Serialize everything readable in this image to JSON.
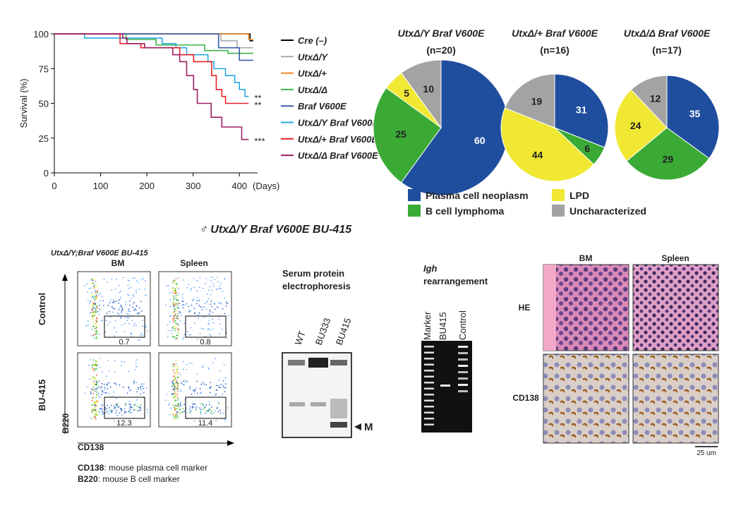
{
  "chart_data": [
    {
      "type": "line",
      "ylabel": "Survival (%)",
      "xlabel": "(Days)",
      "xlim": [
        0,
        450
      ],
      "ylim": [
        0,
        100
      ],
      "xticks": [
        0,
        100,
        200,
        300,
        400
      ],
      "yticks": [
        0,
        25,
        50,
        75,
        100
      ],
      "series": [
        {
          "name": "Cre (–)",
          "color": "#000000",
          "x": [
            0,
            423,
            423,
            430
          ],
          "values": [
            100,
            100,
            95,
            95
          ]
        },
        {
          "name": "UtxΔ/Y",
          "color": "#aaaaaa",
          "x": [
            0,
            360,
            360,
            395,
            395,
            430
          ],
          "values": [
            100,
            100,
            95,
            95,
            90,
            90
          ]
        },
        {
          "name": "UtxΔ/+",
          "color": "#f08a24",
          "x": [
            0,
            420,
            420,
            430
          ],
          "values": [
            100,
            100,
            96,
            96
          ]
        },
        {
          "name": "UtxΔ/Δ",
          "color": "#3cb44b",
          "x": [
            0,
            155,
            155,
            220,
            220,
            325,
            325,
            375,
            375,
            430
          ],
          "values": [
            100,
            100,
            96,
            96,
            92,
            92,
            88,
            88,
            86,
            86
          ]
        },
        {
          "name": "Braf V600E",
          "color": "#3a5dae",
          "x": [
            0,
            355,
            355,
            400,
            400,
            430
          ],
          "values": [
            100,
            100,
            90,
            90,
            81,
            81
          ]
        },
        {
          "name": "UtxΔ/Y Braf V600E",
          "color": "#27aae1",
          "significance": "**",
          "x": [
            0,
            65,
            65,
            233,
            233,
            263,
            263,
            286,
            286,
            332,
            332,
            345,
            345,
            370,
            370,
            390,
            390,
            400,
            400,
            412,
            412,
            420
          ],
          "values": [
            100,
            100,
            97,
            97,
            93,
            93,
            90,
            90,
            85,
            85,
            80,
            80,
            75,
            75,
            70,
            70,
            65,
            65,
            60,
            60,
            55,
            55
          ]
        },
        {
          "name": "UtxΔ/+ Braf V600E",
          "color": "#e8202a",
          "significance": "**",
          "x": [
            0,
            142,
            142,
            187,
            187,
            271,
            271,
            301,
            301,
            340,
            340,
            350,
            350,
            362,
            362,
            370,
            370,
            420
          ],
          "values": [
            100,
            100,
            93,
            93,
            90,
            90,
            85,
            85,
            80,
            80,
            70,
            70,
            60,
            60,
            55,
            55,
            50,
            50
          ]
        },
        {
          "name": "UtxΔ/Δ Braf V600E",
          "color": "#9e1f63",
          "significance": "***",
          "x": [
            0,
            148,
            148,
            157,
            157,
            195,
            195,
            256,
            256,
            271,
            271,
            286,
            286,
            301,
            301,
            309,
            309,
            339,
            339,
            362,
            362,
            405,
            405,
            420
          ],
          "values": [
            100,
            100,
            97,
            97,
            93,
            93,
            90,
            90,
            85,
            85,
            80,
            80,
            70,
            70,
            60,
            60,
            50,
            50,
            40,
            40,
            33,
            33,
            24,
            24
          ]
        }
      ]
    },
    {
      "type": "pie",
      "title": "UtxΔ/Y Braf V600E",
      "subtitle": "(n=20)",
      "categories": [
        "Plasma cell neoplasm",
        "B cell lymphoma",
        "LPD",
        "Uncharacterized"
      ],
      "colors": [
        "#1f4e9e",
        "#3aaa35",
        "#f0e832",
        "#a3a3a3"
      ],
      "values": [
        60,
        25,
        5,
        10
      ]
    },
    {
      "type": "pie",
      "title": "UtxΔ/+ Braf V600E",
      "subtitle": "(n=16)",
      "categories": [
        "Plasma cell neoplasm",
        "B cell lymphoma",
        "LPD",
        "Uncharacterized"
      ],
      "colors": [
        "#1f4e9e",
        "#3aaa35",
        "#f0e832",
        "#a3a3a3"
      ],
      "values": [
        31,
        6,
        44,
        19
      ]
    },
    {
      "type": "pie",
      "title": "UtxΔ/Δ Braf V600E",
      "subtitle": "(n=17)",
      "categories": [
        "Plasma cell neoplasm",
        "B cell lymphoma",
        "LPD",
        "Uncharacterized"
      ],
      "colors": [
        "#1f4e9e",
        "#3aaa35",
        "#f0e832",
        "#a3a3a3"
      ],
      "values": [
        35,
        29,
        24,
        12
      ]
    }
  ],
  "figure_title": "♂ UtxΔ/Y Braf V600E BU-415",
  "flow": {
    "title": "UtxΔ/Y;Braf V600E BU-415",
    "columns": [
      "BM",
      "Spleen"
    ],
    "rows": [
      "Control",
      "BU-415"
    ],
    "gates": [
      "0.7",
      "0.8",
      "12.3",
      "11.4"
    ],
    "y_axis": "B220",
    "x_axis": "CD138",
    "notes": [
      {
        "term": "CD138",
        "text": ": mouse plasma cell marker"
      },
      {
        "term": "B220",
        "text": ": mouse B cell marker"
      }
    ]
  },
  "electrophoresis": {
    "title": [
      "Serum protein",
      "electrophoresis"
    ],
    "lanes": [
      "WT",
      "BU333",
      "BU415"
    ],
    "marker": "M"
  },
  "gel": {
    "title": [
      "Igh",
      "rearrangement"
    ],
    "lanes": [
      "Marker",
      "BU415",
      "Control"
    ]
  },
  "histology": {
    "columns": [
      "BM",
      "Spleen"
    ],
    "rows": [
      "HE",
      "CD138"
    ],
    "scale": "25 um"
  }
}
